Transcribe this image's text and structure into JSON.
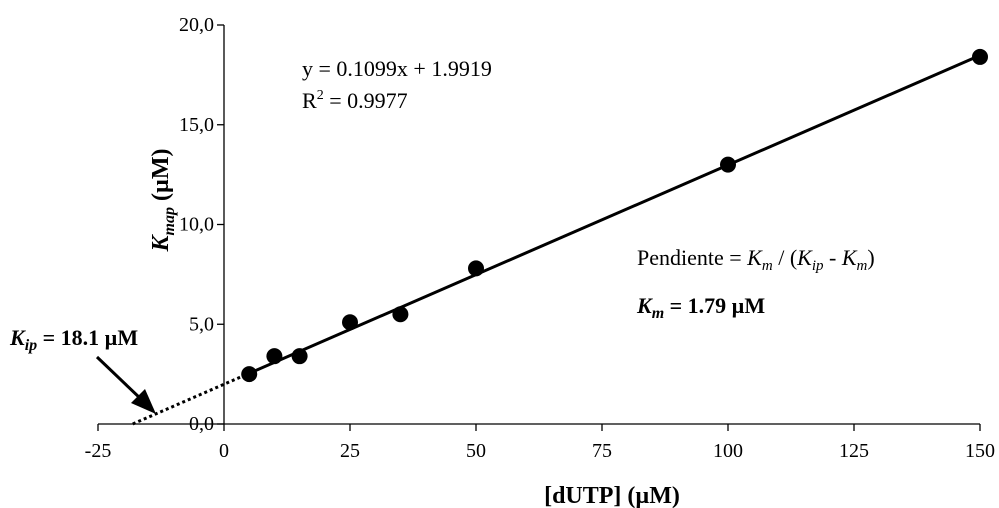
{
  "chart_data": {
    "type": "scatter",
    "xlabel": "[dUTP] (µM)",
    "ylabel": {
      "main": "K",
      "sub": "map",
      "unit": " (µM)"
    },
    "xlim": [
      -25,
      150
    ],
    "ylim": [
      0,
      20
    ],
    "x_ticks": [
      -25,
      0,
      25,
      50,
      75,
      100,
      125,
      150
    ],
    "x_tick_labels": [
      "-25",
      "0",
      "25",
      "50",
      "75",
      "100",
      "125",
      "150"
    ],
    "y_ticks": [
      0,
      5,
      10,
      15,
      20
    ],
    "y_tick_labels": [
      "0,0",
      "5,0",
      "10,0",
      "15,0",
      "20,0"
    ],
    "grid": false,
    "points": [
      {
        "x": 5,
        "y": 2.5
      },
      {
        "x": 10,
        "y": 3.4
      },
      {
        "x": 15,
        "y": 3.4
      },
      {
        "x": 25,
        "y": 5.1
      },
      {
        "x": 35,
        "y": 5.5
      },
      {
        "x": 50,
        "y": 7.8
      },
      {
        "x": 100,
        "y": 13.0
      },
      {
        "x": 150,
        "y": 18.4
      }
    ],
    "fit": {
      "slope": 0.1099,
      "intercept": 1.9919,
      "solid_x_range": [
        5,
        150
      ],
      "dotted_x_range": [
        -18.1,
        5
      ]
    },
    "annotations": {
      "equation": "y = 0.1099x + 1.9919",
      "r2_prefix": "R",
      "r2_sup": "2",
      "r2_rest": " = 0.9977",
      "slope_prefix": "Pendiente = ",
      "slope_km1": "K",
      "slope_km1_sub": "m",
      "slope_mid": " / (",
      "slope_kip": "K",
      "slope_kip_sub": "ip",
      "slope_minus": " - ",
      "slope_km2": "K",
      "slope_km2_sub": "m",
      "slope_close": ")",
      "km_main": "K",
      "km_sub": "m",
      "km_value": " = 1.79 µM",
      "kip_main": "K",
      "kip_sub": "ip",
      "kip_value": " = 18.1 µM"
    }
  }
}
